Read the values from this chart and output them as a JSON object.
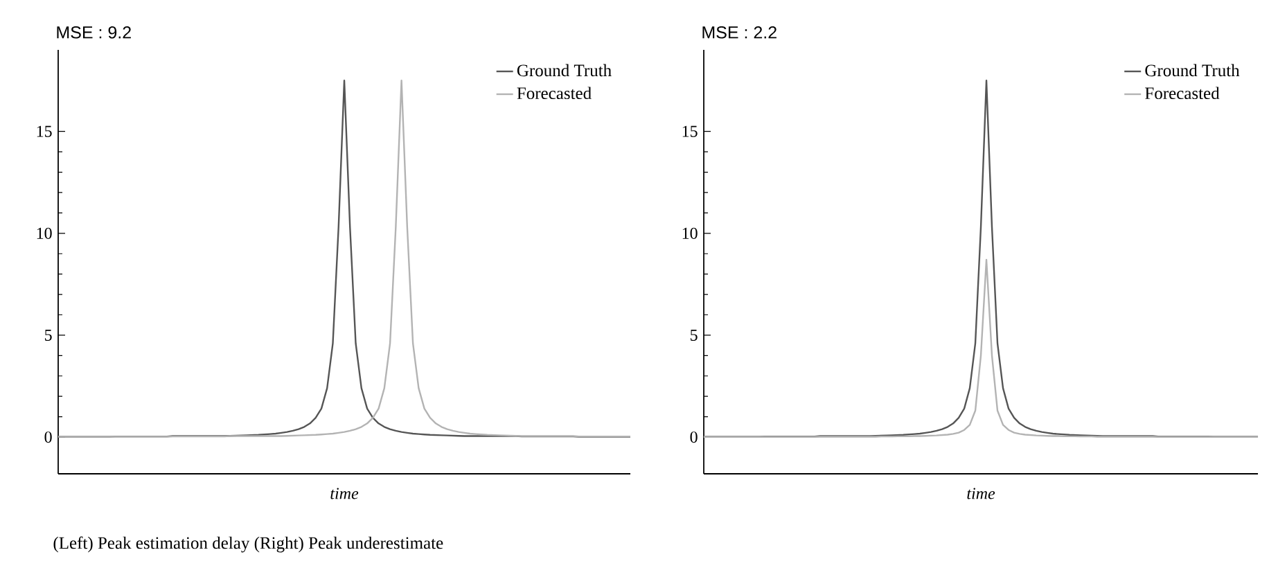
{
  "chart_data": [
    {
      "type": "line",
      "title": "MSE : 9.2",
      "xlabel": "time",
      "categories": [
        null,
        null,
        null,
        null,
        null,
        null,
        null,
        null,
        null,
        null,
        null,
        null,
        null,
        null,
        null,
        null,
        null,
        null,
        null,
        null,
        null,
        null,
        null,
        null,
        null,
        null,
        null,
        null,
        null,
        null,
        null,
        null,
        null,
        null,
        null,
        null,
        null,
        null,
        null,
        null,
        null,
        null,
        null,
        null,
        null,
        null,
        null,
        null,
        null,
        null,
        null,
        null,
        null,
        null,
        null,
        null,
        null,
        null,
        null,
        null,
        null,
        null,
        null,
        null,
        null,
        null,
        null,
        null,
        null,
        null,
        null,
        null,
        null,
        null,
        null,
        null,
        null,
        null,
        null,
        null,
        null,
        null,
        null,
        null,
        null,
        null,
        null,
        null,
        null,
        null,
        null,
        null,
        null,
        null,
        null,
        null,
        null,
        null,
        null,
        null,
        null
      ],
      "ylim": [
        -1.8,
        19
      ],
      "yticks": [
        0,
        5,
        10,
        15
      ],
      "tick_labels": "y",
      "legend": "top right",
      "annotations": [
        "(Left) Peak estimation delay (Right) Peak underestimate"
      ],
      "series": [
        {
          "name": "Ground Truth",
          "color": "#555555",
          "values": [
            0.02,
            0.02,
            0.02,
            0.02,
            0.02,
            0.02,
            0.02,
            0.02,
            0.02,
            0.02,
            0.03,
            0.03,
            0.03,
            0.03,
            0.03,
            0.03,
            0.03,
            0.03,
            0.03,
            0.03,
            0.05,
            0.05,
            0.05,
            0.05,
            0.05,
            0.05,
            0.05,
            0.05,
            0.05,
            0.05,
            0.06,
            0.07,
            0.08,
            0.09,
            0.1,
            0.11,
            0.13,
            0.15,
            0.17,
            0.21,
            0.25,
            0.31,
            0.39,
            0.5,
            0.67,
            0.95,
            1.4,
            2.4,
            4.6,
            10.3,
            17.5,
            10.3,
            4.6,
            2.4,
            1.4,
            0.95,
            0.67,
            0.5,
            0.39,
            0.31,
            0.25,
            0.21,
            0.17,
            0.15,
            0.13,
            0.11,
            0.1,
            0.09,
            0.08,
            0.07,
            0.06,
            0.05,
            0.05,
            0.05,
            0.05,
            0.05,
            0.05,
            0.05,
            0.05,
            0.05,
            0.05,
            0.03,
            0.03,
            0.03,
            0.03,
            0.03,
            0.03,
            0.03,
            0.03,
            0.03,
            0.03,
            0.02,
            0.02,
            0.02,
            0.02,
            0.02,
            0.02,
            0.02,
            0.02,
            0.02,
            0.02
          ]
        },
        {
          "name": "Forecasted",
          "color": "#b3b3b3",
          "values": [
            0.02,
            0.02,
            0.02,
            0.02,
            0.02,
            0.02,
            0.02,
            0.02,
            0.02,
            0.02,
            0.02,
            0.02,
            0.02,
            0.02,
            0.02,
            0.02,
            0.02,
            0.02,
            0.02,
            0.02,
            0.03,
            0.03,
            0.03,
            0.03,
            0.03,
            0.03,
            0.03,
            0.03,
            0.03,
            0.03,
            0.05,
            0.05,
            0.05,
            0.05,
            0.05,
            0.05,
            0.05,
            0.05,
            0.05,
            0.05,
            0.06,
            0.07,
            0.08,
            0.09,
            0.1,
            0.11,
            0.13,
            0.15,
            0.17,
            0.21,
            0.25,
            0.31,
            0.39,
            0.5,
            0.67,
            0.95,
            1.4,
            2.4,
            4.6,
            10.3,
            17.5,
            10.3,
            4.6,
            2.4,
            1.4,
            0.95,
            0.67,
            0.5,
            0.39,
            0.31,
            0.25,
            0.21,
            0.17,
            0.15,
            0.13,
            0.11,
            0.1,
            0.09,
            0.08,
            0.07,
            0.06,
            0.05,
            0.05,
            0.05,
            0.05,
            0.05,
            0.05,
            0.05,
            0.05,
            0.05,
            0.05,
            0.03,
            0.03,
            0.03,
            0.03,
            0.03,
            0.03,
            0.03,
            0.03,
            0.03,
            0.03
          ]
        }
      ]
    },
    {
      "type": "line",
      "title": "MSE : 2.2",
      "xlabel": "time",
      "categories": [
        null,
        null,
        null,
        null,
        null,
        null,
        null,
        null,
        null,
        null,
        null,
        null,
        null,
        null,
        null,
        null,
        null,
        null,
        null,
        null,
        null,
        null,
        null,
        null,
        null,
        null,
        null,
        null,
        null,
        null,
        null,
        null,
        null,
        null,
        null,
        null,
        null,
        null,
        null,
        null,
        null,
        null,
        null,
        null,
        null,
        null,
        null,
        null,
        null,
        null,
        null,
        null,
        null,
        null,
        null,
        null,
        null,
        null,
        null,
        null,
        null,
        null,
        null,
        null,
        null,
        null,
        null,
        null,
        null,
        null,
        null,
        null,
        null,
        null,
        null,
        null,
        null,
        null,
        null,
        null,
        null,
        null,
        null,
        null,
        null,
        null,
        null,
        null,
        null,
        null,
        null,
        null,
        null,
        null,
        null,
        null,
        null,
        null,
        null,
        null,
        null
      ],
      "ylim": [
        -1.8,
        19
      ],
      "yticks": [
        0,
        5,
        10,
        15
      ],
      "tick_labels": "y",
      "legend": "top right",
      "series": [
        {
          "name": "Ground Truth",
          "color": "#555555",
          "values": [
            0.02,
            0.02,
            0.02,
            0.02,
            0.02,
            0.02,
            0.02,
            0.02,
            0.02,
            0.02,
            0.02,
            0.03,
            0.03,
            0.03,
            0.03,
            0.03,
            0.03,
            0.03,
            0.03,
            0.03,
            0.03,
            0.05,
            0.05,
            0.05,
            0.05,
            0.05,
            0.05,
            0.05,
            0.05,
            0.05,
            0.05,
            0.06,
            0.07,
            0.08,
            0.09,
            0.1,
            0.11,
            0.13,
            0.15,
            0.17,
            0.21,
            0.25,
            0.31,
            0.39,
            0.5,
            0.67,
            0.95,
            1.4,
            2.4,
            4.6,
            10.3,
            17.5,
            10.3,
            4.6,
            2.4,
            1.4,
            0.95,
            0.67,
            0.5,
            0.39,
            0.31,
            0.25,
            0.21,
            0.17,
            0.15,
            0.13,
            0.11,
            0.1,
            0.09,
            0.08,
            0.07,
            0.06,
            0.05,
            0.05,
            0.05,
            0.05,
            0.05,
            0.05,
            0.05,
            0.05,
            0.05,
            0.05,
            0.03,
            0.03,
            0.03,
            0.03,
            0.03,
            0.03,
            0.03,
            0.03,
            0.03,
            0.03,
            0.02,
            0.02,
            0.02,
            0.02,
            0.02,
            0.02,
            0.02,
            0.02,
            0.02
          ]
        },
        {
          "name": "Forecasted",
          "color": "#b3b3b3",
          "values": [
            0.01,
            0.01,
            0.01,
            0.01,
            0.01,
            0.01,
            0.01,
            0.01,
            0.01,
            0.01,
            0.01,
            0.01,
            0.01,
            0.01,
            0.01,
            0.01,
            0.01,
            0.01,
            0.01,
            0.01,
            0.01,
            0.02,
            0.02,
            0.02,
            0.02,
            0.02,
            0.02,
            0.02,
            0.02,
            0.02,
            0.02,
            0.02,
            0.03,
            0.03,
            0.03,
            0.04,
            0.04,
            0.04,
            0.05,
            0.05,
            0.06,
            0.07,
            0.08,
            0.1,
            0.12,
            0.16,
            0.22,
            0.35,
            0.6,
            1.3,
            4.0,
            8.7,
            4.0,
            1.3,
            0.6,
            0.35,
            0.22,
            0.16,
            0.12,
            0.1,
            0.08,
            0.07,
            0.06,
            0.05,
            0.05,
            0.04,
            0.04,
            0.04,
            0.03,
            0.03,
            0.03,
            0.02,
            0.02,
            0.02,
            0.02,
            0.02,
            0.02,
            0.02,
            0.02,
            0.02,
            0.02,
            0.02,
            0.01,
            0.01,
            0.01,
            0.01,
            0.01,
            0.01,
            0.01,
            0.01,
            0.01,
            0.01,
            0.01,
            0.01,
            0.01,
            0.01,
            0.01,
            0.01,
            0.01,
            0.01,
            0.01
          ]
        }
      ]
    }
  ]
}
